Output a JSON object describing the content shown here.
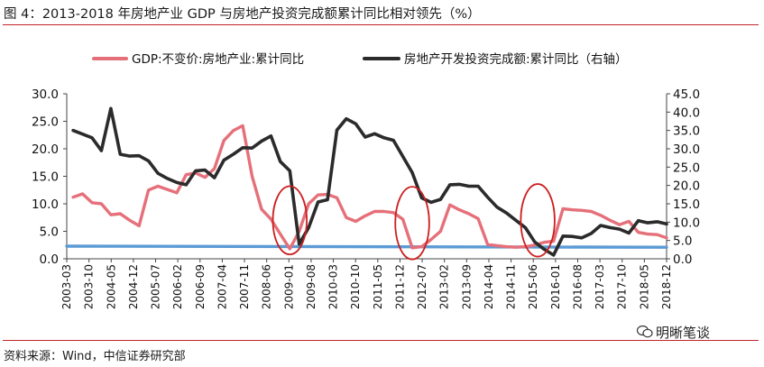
{
  "title": "图 4：2013-2018 年房地产业 GDP 与房地产投资完成额累计同比相对领先（%）",
  "source": "资料来源：Wind，中信证券研究部",
  "watermark": "明晰笔谈",
  "chart_data": {
    "type": "line",
    "legend_placement": "top",
    "grid": false,
    "xlabel": "",
    "ylabel": "",
    "x_ticks": [
      "2003-03",
      "2003-10",
      "2004-05",
      "2004-12",
      "2005-07",
      "2006-02",
      "2006-09",
      "2007-04",
      "2007-11",
      "2008-06",
      "2009-01",
      "2009-08",
      "2010-03",
      "2010-10",
      "2011-05",
      "2011-12",
      "2012-07",
      "2013-02",
      "2013-09",
      "2014-04",
      "2014-11",
      "2015-06",
      "2016-01",
      "2016-08",
      "2017-03",
      "2017-10",
      "2018-05",
      "2018-12"
    ],
    "y_left": {
      "ticks": [
        "0.0",
        "5.0",
        "10.0",
        "15.0",
        "20.0",
        "25.0",
        "30.0"
      ],
      "range": [
        0,
        30
      ]
    },
    "y_right": {
      "ticks": [
        "0.0",
        "5.0",
        "10.0",
        "15.0",
        "20.0",
        "25.0",
        "30.0",
        "35.0",
        "40.0",
        "45.0"
      ],
      "range": [
        0,
        45
      ]
    },
    "series": [
      {
        "name": "GDP:不变价:房地产业:累计同比",
        "axis": "left",
        "color": "#e5707a",
        "points": [
          [
            2003.17,
            11.2
          ],
          [
            2003.42,
            11.8
          ],
          [
            2003.67,
            10.2
          ],
          [
            2003.92,
            10.0
          ],
          [
            2004.17,
            8.0
          ],
          [
            2004.42,
            8.2
          ],
          [
            2004.67,
            7.0
          ],
          [
            2004.92,
            6.0
          ],
          [
            2005.17,
            12.5
          ],
          [
            2005.42,
            13.2
          ],
          [
            2005.67,
            12.6
          ],
          [
            2005.92,
            12.0
          ],
          [
            2006.17,
            15.3
          ],
          [
            2006.42,
            15.6
          ],
          [
            2006.67,
            14.8
          ],
          [
            2006.92,
            16.4
          ],
          [
            2007.17,
            21.5
          ],
          [
            2007.42,
            23.3
          ],
          [
            2007.67,
            24.2
          ],
          [
            2007.92,
            15.0
          ],
          [
            2008.17,
            9.0
          ],
          [
            2008.42,
            7.2
          ],
          [
            2008.67,
            4.5
          ],
          [
            2008.92,
            1.8
          ],
          [
            2009.17,
            5.0
          ],
          [
            2009.42,
            10.0
          ],
          [
            2009.67,
            11.6
          ],
          [
            2009.92,
            11.7
          ],
          [
            2010.17,
            11.1
          ],
          [
            2010.42,
            7.5
          ],
          [
            2010.67,
            6.8
          ],
          [
            2010.92,
            7.8
          ],
          [
            2011.17,
            8.6
          ],
          [
            2011.42,
            8.6
          ],
          [
            2011.67,
            8.4
          ],
          [
            2011.92,
            7.2
          ],
          [
            2012.17,
            2.0
          ],
          [
            2012.42,
            2.2
          ],
          [
            2012.67,
            3.5
          ],
          [
            2012.92,
            5.0
          ],
          [
            2013.17,
            9.8
          ],
          [
            2013.42,
            8.9
          ],
          [
            2013.67,
            8.2
          ],
          [
            2013.92,
            7.3
          ],
          [
            2014.17,
            2.6
          ],
          [
            2014.42,
            2.4
          ],
          [
            2014.67,
            2.2
          ],
          [
            2014.92,
            2.1
          ],
          [
            2015.17,
            2.2
          ],
          [
            2015.42,
            2.5
          ],
          [
            2015.67,
            3.0
          ],
          [
            2015.92,
            3.2
          ],
          [
            2016.17,
            9.1
          ],
          [
            2016.42,
            8.9
          ],
          [
            2016.67,
            8.8
          ],
          [
            2016.92,
            8.6
          ],
          [
            2017.17,
            7.9
          ],
          [
            2017.42,
            7.0
          ],
          [
            2017.67,
            6.2
          ],
          [
            2017.92,
            6.8
          ],
          [
            2018.17,
            4.8
          ],
          [
            2018.42,
            4.5
          ],
          [
            2018.67,
            4.4
          ],
          [
            2018.92,
            3.8
          ]
        ]
      },
      {
        "name": "房地产开发投资完成额:累计同比（右轴）",
        "axis": "right",
        "color": "#2b2b2b",
        "points": [
          [
            2003.17,
            35.0
          ],
          [
            2003.42,
            34.0
          ],
          [
            2003.67,
            33.0
          ],
          [
            2003.92,
            29.5
          ],
          [
            2004.17,
            41.0
          ],
          [
            2004.42,
            28.5
          ],
          [
            2004.67,
            28.0
          ],
          [
            2004.92,
            28.1
          ],
          [
            2005.17,
            26.7
          ],
          [
            2005.42,
            23.3
          ],
          [
            2005.67,
            21.9
          ],
          [
            2005.92,
            20.8
          ],
          [
            2006.17,
            20.2
          ],
          [
            2006.42,
            24.0
          ],
          [
            2006.67,
            24.2
          ],
          [
            2006.92,
            22.1
          ],
          [
            2007.17,
            26.9
          ],
          [
            2007.42,
            28.5
          ],
          [
            2007.67,
            30.3
          ],
          [
            2007.92,
            30.2
          ],
          [
            2008.17,
            32.1
          ],
          [
            2008.42,
            33.5
          ],
          [
            2008.67,
            26.5
          ],
          [
            2008.92,
            24.0
          ],
          [
            2009.17,
            4.0
          ],
          [
            2009.42,
            8.5
          ],
          [
            2009.67,
            15.5
          ],
          [
            2009.92,
            16.1
          ],
          [
            2010.17,
            35.1
          ],
          [
            2010.42,
            38.2
          ],
          [
            2010.67,
            36.8
          ],
          [
            2010.92,
            33.2
          ],
          [
            2011.17,
            34.1
          ],
          [
            2011.42,
            33.0
          ],
          [
            2011.67,
            32.3
          ],
          [
            2011.92,
            27.9
          ],
          [
            2012.17,
            23.5
          ],
          [
            2012.42,
            16.6
          ],
          [
            2012.67,
            15.4
          ],
          [
            2012.92,
            16.2
          ],
          [
            2013.17,
            20.2
          ],
          [
            2013.42,
            20.3
          ],
          [
            2013.67,
            19.8
          ],
          [
            2013.92,
            19.8
          ],
          [
            2014.17,
            16.8
          ],
          [
            2014.42,
            14.1
          ],
          [
            2014.67,
            12.5
          ],
          [
            2014.92,
            10.5
          ],
          [
            2015.17,
            8.5
          ],
          [
            2015.42,
            4.6
          ],
          [
            2015.67,
            2.6
          ],
          [
            2015.92,
            1.0
          ],
          [
            2016.17,
            6.2
          ],
          [
            2016.42,
            6.1
          ],
          [
            2016.67,
            5.7
          ],
          [
            2016.92,
            6.9
          ],
          [
            2017.17,
            9.1
          ],
          [
            2017.42,
            8.5
          ],
          [
            2017.67,
            8.1
          ],
          [
            2017.92,
            7.0
          ],
          [
            2018.17,
            10.4
          ],
          [
            2018.42,
            9.8
          ],
          [
            2018.67,
            10.1
          ],
          [
            2018.92,
            9.5
          ]
        ]
      },
      {
        "name": "",
        "axis": "left",
        "color": "#5b9bd5",
        "points": [
          [
            2003.0,
            2.3
          ],
          [
            2018.92,
            2.1
          ]
        ]
      }
    ],
    "annotations": [
      {
        "type": "ellipse",
        "color": "#cc1f1f",
        "center": [
          2008.92,
          7.0
        ],
        "span_years": 0.9,
        "span_y": 12.4
      },
      {
        "type": "ellipse",
        "color": "#cc1f1f",
        "center": [
          2012.17,
          6.5
        ],
        "span_years": 0.9,
        "span_y": 13.2
      },
      {
        "type": "ellipse",
        "color": "#cc1f1f",
        "center": [
          2015.5,
          7.0
        ],
        "span_years": 0.9,
        "span_y": 13.2
      }
    ]
  }
}
